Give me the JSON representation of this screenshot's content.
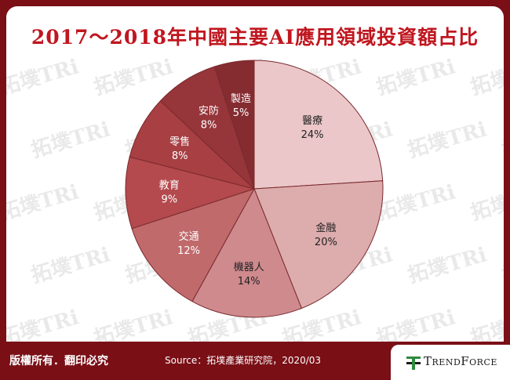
{
  "title": "2017～2018年中國主要AI應用領域投資額占比",
  "watermark": "拓墣TRi",
  "footer": {
    "rights": "版權所有．翻印必究",
    "source": "Source：拓墣產業研究院，2020/03",
    "brand": "TrendForce"
  },
  "colors": {
    "frame": "#7a0f16",
    "title": "#c0161f",
    "brand_green": "#2e8b3d"
  },
  "chart_data": {
    "type": "pie",
    "title": "2017～2018年中國主要AI應用領域投資額占比",
    "slices": [
      {
        "label": "醫療",
        "value": 24,
        "display": "24%",
        "color": "#ebc7c9"
      },
      {
        "label": "金融",
        "value": 20,
        "display": "20%",
        "color": "#ddacad"
      },
      {
        "label": "機器人",
        "value": 14,
        "display": "14%",
        "color": "#cf8a8e"
      },
      {
        "label": "交通",
        "value": 12,
        "display": "12%",
        "color": "#c06a6c"
      },
      {
        "label": "教育",
        "value": 9,
        "display": "9%",
        "color": "#b44a4e"
      },
      {
        "label": "零售",
        "value": 8,
        "display": "8%",
        "color": "#a73f43"
      },
      {
        "label": "安防",
        "value": 8,
        "display": "8%",
        "color": "#96353a"
      },
      {
        "label": "製造",
        "value": 5,
        "display": "5%",
        "color": "#852c31"
      }
    ]
  }
}
